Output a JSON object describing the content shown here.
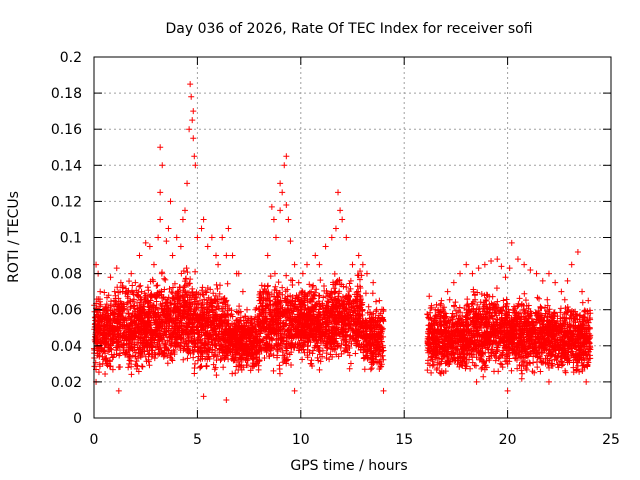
{
  "chart_data": {
    "type": "scatter",
    "title": "Day 036 of 2026, Rate Of TEC Index for receiver sofi",
    "xlabel": "GPS time / hours",
    "ylabel": "ROTI / TECUs",
    "xlim": [
      0,
      25
    ],
    "ylim": [
      0,
      0.2
    ],
    "x_ticks": [
      0,
      5,
      10,
      15,
      20,
      25
    ],
    "y_ticks": [
      0,
      0.02,
      0.04,
      0.06,
      0.08,
      0.1,
      0.12,
      0.14,
      0.16,
      0.18,
      0.2
    ],
    "x_tick_labels": [
      "0",
      "5",
      "10",
      "15",
      "20",
      "25"
    ],
    "y_tick_labels": [
      "0",
      "0.02",
      "0.04",
      "0.06",
      "0.08",
      "0.1",
      "0.12",
      "0.14",
      "0.16",
      "0.18",
      "0.2"
    ],
    "grid": true,
    "legend": "none",
    "marker": "plus",
    "color": "#ff0000",
    "data_gap_hours": [
      14,
      16.1
    ],
    "series": [
      {
        "points": [
          [
            0.1,
            0.045
          ],
          [
            0.1,
            0.085
          ],
          [
            0.1,
            0.02
          ],
          [
            0.2,
            0.08
          ],
          [
            0.3,
            0.07
          ],
          [
            0.5,
            0.06
          ],
          [
            0.6,
            0.03
          ],
          [
            0.8,
            0.078
          ],
          [
            1.0,
            0.07
          ],
          [
            1.1,
            0.083
          ],
          [
            1.3,
            0.075
          ],
          [
            1.4,
            0.055
          ],
          [
            1.6,
            0.06
          ],
          [
            1.7,
            0.03
          ],
          [
            1.8,
            0.08
          ],
          [
            2.0,
            0.075
          ],
          [
            2.2,
            0.09
          ],
          [
            2.3,
            0.07
          ],
          [
            2.5,
            0.097
          ],
          [
            2.7,
            0.095
          ],
          [
            2.9,
            0.085
          ],
          [
            3.1,
            0.1
          ],
          [
            3.2,
            0.11
          ],
          [
            3.2,
            0.125
          ],
          [
            3.2,
            0.15
          ],
          [
            3.3,
            0.14
          ],
          [
            3.5,
            0.098
          ],
          [
            3.6,
            0.105
          ],
          [
            3.7,
            0.12
          ],
          [
            3.8,
            0.09
          ],
          [
            4.0,
            0.1
          ],
          [
            4.2,
            0.095
          ],
          [
            4.3,
            0.11
          ],
          [
            4.4,
            0.115
          ],
          [
            4.5,
            0.13
          ],
          [
            4.6,
            0.16
          ],
          [
            4.65,
            0.185
          ],
          [
            4.7,
            0.178
          ],
          [
            4.75,
            0.165
          ],
          [
            4.8,
            0.17
          ],
          [
            4.8,
            0.155
          ],
          [
            4.85,
            0.145
          ],
          [
            4.9,
            0.14
          ],
          [
            5.0,
            0.1
          ],
          [
            5.2,
            0.105
          ],
          [
            5.3,
            0.11
          ],
          [
            5.5,
            0.095
          ],
          [
            5.7,
            0.1
          ],
          [
            5.9,
            0.09
          ],
          [
            6.0,
            0.085
          ],
          [
            6.2,
            0.1
          ],
          [
            6.4,
            0.09
          ],
          [
            6.5,
            0.105
          ],
          [
            6.7,
            0.09
          ],
          [
            6.9,
            0.08
          ],
          [
            7.0,
            0.08
          ],
          [
            7.2,
            0.07
          ],
          [
            7.4,
            0.06
          ],
          [
            7.6,
            0.055
          ],
          [
            7.8,
            0.06
          ],
          [
            8.0,
            0.065
          ],
          [
            8.2,
            0.07
          ],
          [
            8.4,
            0.09
          ],
          [
            8.6,
            0.117
          ],
          [
            8.7,
            0.11
          ],
          [
            8.8,
            0.1
          ],
          [
            9.0,
            0.115
          ],
          [
            9.0,
            0.13
          ],
          [
            9.1,
            0.125
          ],
          [
            9.2,
            0.14
          ],
          [
            9.3,
            0.145
          ],
          [
            9.3,
            0.118
          ],
          [
            9.4,
            0.11
          ],
          [
            9.5,
            0.098
          ],
          [
            9.7,
            0.085
          ],
          [
            9.9,
            0.075
          ],
          [
            10.1,
            0.08
          ],
          [
            10.3,
            0.085
          ],
          [
            10.5,
            0.07
          ],
          [
            10.7,
            0.09
          ],
          [
            10.9,
            0.085
          ],
          [
            11.2,
            0.095
          ],
          [
            11.5,
            0.1
          ],
          [
            11.7,
            0.105
          ],
          [
            11.8,
            0.125
          ],
          [
            11.9,
            0.115
          ],
          [
            12.0,
            0.11
          ],
          [
            12.2,
            0.1
          ],
          [
            12.5,
            0.085
          ],
          [
            12.8,
            0.09
          ],
          [
            13.0,
            0.085
          ],
          [
            13.2,
            0.08
          ],
          [
            13.5,
            0.075
          ],
          [
            13.8,
            0.065
          ],
          [
            14.0,
            0.06
          ],
          [
            14.0,
            0.015
          ],
          [
            1.2,
            0.015
          ],
          [
            6.4,
            0.01
          ],
          [
            5.3,
            0.012
          ],
          [
            9.7,
            0.015
          ],
          [
            16.2,
            0.055
          ],
          [
            16.5,
            0.06
          ],
          [
            16.8,
            0.065
          ],
          [
            17.1,
            0.07
          ],
          [
            17.4,
            0.075
          ],
          [
            17.7,
            0.08
          ],
          [
            18.0,
            0.085
          ],
          [
            18.3,
            0.08
          ],
          [
            18.6,
            0.083
          ],
          [
            18.9,
            0.085
          ],
          [
            19.2,
            0.087
          ],
          [
            19.5,
            0.088
          ],
          [
            19.7,
            0.084
          ],
          [
            19.9,
            0.078
          ],
          [
            20.1,
            0.083
          ],
          [
            20.2,
            0.097
          ],
          [
            20.5,
            0.088
          ],
          [
            20.8,
            0.085
          ],
          [
            21.1,
            0.082
          ],
          [
            21.4,
            0.08
          ],
          [
            21.7,
            0.076
          ],
          [
            22.0,
            0.08
          ],
          [
            22.3,
            0.075
          ],
          [
            22.6,
            0.07
          ],
          [
            22.9,
            0.076
          ],
          [
            23.1,
            0.085
          ],
          [
            23.4,
            0.092
          ],
          [
            23.6,
            0.07
          ],
          [
            23.9,
            0.065
          ],
          [
            16.3,
            0.025
          ],
          [
            18.5,
            0.02
          ],
          [
            20.0,
            0.015
          ],
          [
            22.0,
            0.02
          ],
          [
            23.8,
            0.02
          ]
        ],
        "dense_band": [
          {
            "x": [
              0.0,
              1.0
            ],
            "y": [
              0.02,
              0.075
            ]
          },
          {
            "x": [
              1.0,
              2.5
            ],
            "y": [
              0.02,
              0.08
            ]
          },
          {
            "x": [
              2.5,
              4.0
            ],
            "y": [
              0.02,
              0.085
            ]
          },
          {
            "x": [
              4.0,
              5.0
            ],
            "y": [
              0.02,
              0.09
            ]
          },
          {
            "x": [
              5.0,
              6.5
            ],
            "y": [
              0.02,
              0.08
            ]
          },
          {
            "x": [
              6.5,
              8.0
            ],
            "y": [
              0.02,
              0.065
            ]
          },
          {
            "x": [
              8.0,
              9.5
            ],
            "y": [
              0.02,
              0.085
            ]
          },
          {
            "x": [
              9.5,
              11.5
            ],
            "y": [
              0.025,
              0.08
            ]
          },
          {
            "x": [
              11.5,
              13.0
            ],
            "y": [
              0.025,
              0.085
            ]
          },
          {
            "x": [
              13.0,
              14.0
            ],
            "y": [
              0.02,
              0.07
            ]
          },
          {
            "x": [
              16.1,
              18.0
            ],
            "y": [
              0.02,
              0.07
            ]
          },
          {
            "x": [
              18.0,
              20.0
            ],
            "y": [
              0.02,
              0.075
            ]
          },
          {
            "x": [
              20.0,
              22.0
            ],
            "y": [
              0.02,
              0.072
            ]
          },
          {
            "x": [
              22.0,
              24.0
            ],
            "y": [
              0.02,
              0.068
            ]
          }
        ]
      }
    ]
  }
}
